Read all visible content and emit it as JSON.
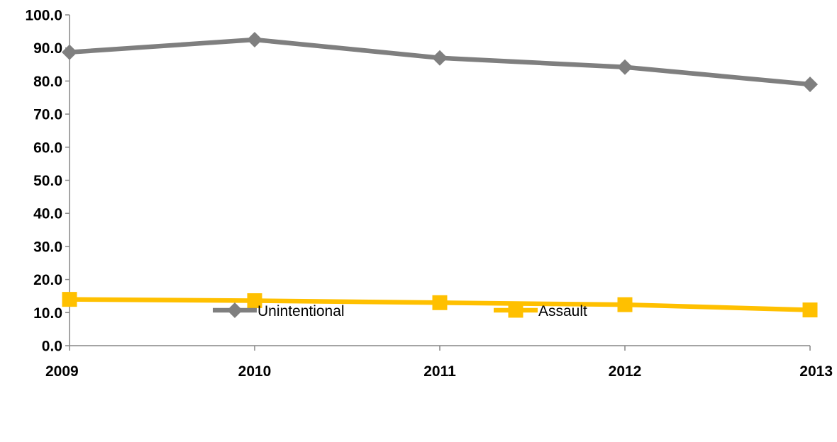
{
  "chart_data": {
    "type": "line",
    "title": "",
    "xlabel": "",
    "ylabel": "",
    "categories": [
      "2009",
      "2010",
      "2011",
      "2012",
      "2013"
    ],
    "ylim": [
      0,
      100
    ],
    "ytick_step": 10,
    "ytick_labels": [
      "0.0",
      "10.0",
      "20.0",
      "30.0",
      "40.0",
      "50.0",
      "60.0",
      "70.0",
      "80.0",
      "90.0",
      "100.0"
    ],
    "grid": false,
    "legend_position": "bottom",
    "series": [
      {
        "name": "Unintentional",
        "values": [
          88.7,
          92.5,
          87.0,
          84.2,
          79.0
        ],
        "color": "#7f7f7f",
        "marker": "diamond"
      },
      {
        "name": "Assault",
        "values": [
          14.0,
          13.6,
          13.0,
          12.4,
          10.8
        ],
        "color": "#ffc000",
        "marker": "square"
      }
    ]
  }
}
